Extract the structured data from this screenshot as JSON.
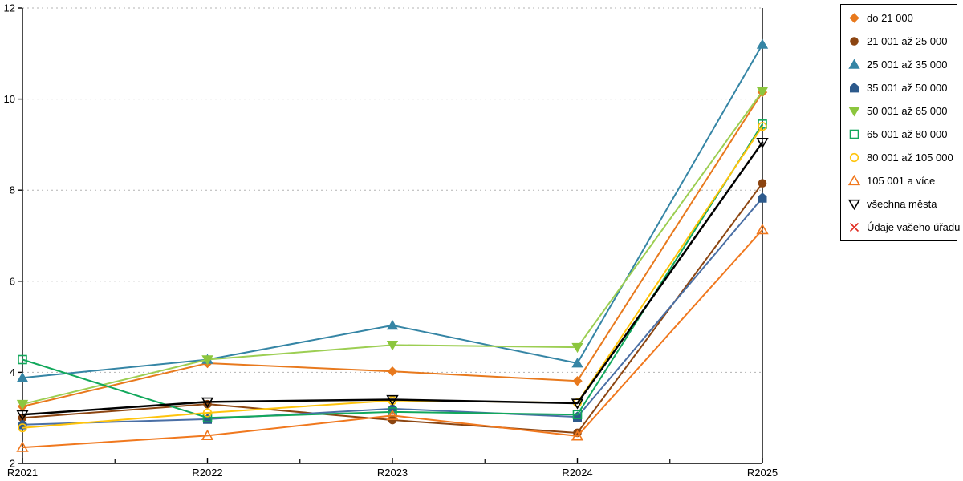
{
  "page": {
    "background": "#ffffff",
    "axis_color": "#000000",
    "grid_color": "#b3b3b3"
  },
  "chart_data": {
    "type": "line",
    "title": "",
    "xlabel": "",
    "ylabel": "",
    "categories": [
      "R2021",
      "R2022",
      "R2023",
      "R2024",
      "R2025"
    ],
    "ylim": [
      2,
      12
    ],
    "yticks": [
      2,
      4,
      6,
      8,
      10,
      12
    ],
    "grid": "horizontal-dotted",
    "legend_position": "right",
    "series": [
      {
        "name": "do 21 000",
        "color": "#E8791D",
        "marker": "diamond",
        "filled": true,
        "line_width": 2,
        "values": [
          3.25,
          4.2,
          4.02,
          3.81,
          10.15
        ]
      },
      {
        "name": "21 001 až 25 000",
        "color": "#8C4511",
        "marker": "circle",
        "filled": true,
        "line_width": 2,
        "values": [
          3.0,
          3.3,
          2.95,
          2.67,
          8.15
        ]
      },
      {
        "name": "25 001 až 35 000",
        "color": "#3585A5",
        "marker": "triup",
        "filled": true,
        "line_width": 2,
        "values": [
          3.88,
          4.28,
          5.03,
          4.2,
          11.2
        ]
      },
      {
        "name": "35 001 až 50 000",
        "color": "#2D5A8C",
        "marker": "pentagon",
        "filled": true,
        "line_width": 2,
        "line_color": "#4A6FA5",
        "values": [
          2.85,
          2.97,
          3.2,
          3.02,
          7.83
        ]
      },
      {
        "name": "50 001 až 65 000",
        "color": "#8CC63E",
        "marker": "tridown",
        "filled": true,
        "line_width": 2,
        "line_color": "#9CCE52",
        "values": [
          3.3,
          4.28,
          4.6,
          4.55,
          10.17
        ]
      },
      {
        "name": "65 001 až 80 000",
        "color": "#12A85C",
        "marker": "square",
        "filled": false,
        "line_width": 2,
        "values": [
          4.28,
          3.0,
          3.13,
          3.07,
          9.45
        ]
      },
      {
        "name": "80 001 až 105 000",
        "color": "#FFC40C",
        "marker": "circle",
        "filled": false,
        "line_width": 2,
        "values": [
          2.78,
          3.11,
          3.38,
          3.33,
          9.4
        ]
      },
      {
        "name": "105 001 a více",
        "color": "#F0781E",
        "marker": "triup",
        "filled": false,
        "line_width": 2,
        "values": [
          2.35,
          2.61,
          3.05,
          2.6,
          7.13
        ]
      },
      {
        "name": "všechna města",
        "color": "#000000",
        "marker": "tridown",
        "filled": false,
        "line_width": 2.5,
        "values": [
          3.07,
          3.35,
          3.4,
          3.32,
          9.05
        ]
      },
      {
        "name": "Údaje vašeho úřadu",
        "color": "#E02B20",
        "marker": "x",
        "filled": false,
        "line_width": 2,
        "values": []
      }
    ]
  }
}
